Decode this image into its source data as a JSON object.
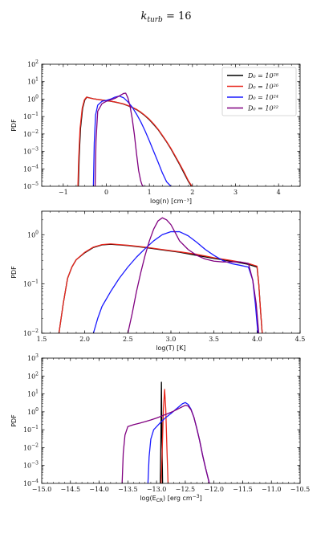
{
  "figure_title": "k_turb = 16",
  "title_parts": {
    "base": "k",
    "sub": "turb",
    "rest": " = 16"
  },
  "chart_data": [
    {
      "type": "line",
      "id": "density",
      "xlabel": "log(n) [cm⁻³]",
      "ylabel": "PDF",
      "xlim": [
        -1.5,
        4.5
      ],
      "ylim": [
        1e-05,
        100
      ],
      "yscale": "log",
      "grid": false,
      "legend": "top-right",
      "xticks": [
        -1,
        0,
        1,
        2,
        3,
        4
      ],
      "xticklabels": [
        "−1",
        "0",
        "1",
        "2",
        "3",
        "4"
      ],
      "yticks": [
        1e-05,
        0.0001,
        0.001,
        0.01,
        0.1,
        1,
        10,
        100
      ],
      "yticklabels": [
        [
          "10",
          "−5"
        ],
        [
          "10",
          "−4"
        ],
        [
          "10",
          "−3"
        ],
        [
          "10",
          "−2"
        ],
        [
          "10",
          "−1"
        ],
        [
          "10",
          "0"
        ],
        [
          "10",
          "1"
        ],
        [
          "10",
          "2"
        ]
      ],
      "series": [
        {
          "name": "D₀ = 10²⁸",
          "color": "#000000",
          "x": [
            -0.65,
            -0.63,
            -0.6,
            -0.55,
            -0.5,
            -0.45,
            -0.4,
            -0.3,
            -0.2,
            -0.1,
            0.0,
            0.1,
            0.2,
            0.3,
            0.4,
            0.5,
            0.6,
            0.7,
            0.8,
            0.9,
            1.0,
            1.1,
            1.2,
            1.3,
            1.4,
            1.5,
            1.6,
            1.7,
            1.8,
            1.9,
            2.0,
            2.1,
            2.17
          ],
          "y": [
            1e-05,
            0.0005,
            0.02,
            0.3,
            0.9,
            1.3,
            1.2,
            1.05,
            0.95,
            0.88,
            0.82,
            0.75,
            0.68,
            0.6,
            0.52,
            0.42,
            0.33,
            0.25,
            0.17,
            0.11,
            0.065,
            0.035,
            0.018,
            0.008,
            0.0035,
            0.0014,
            0.0005,
            0.00018,
            6e-05,
            2e-05,
            8e-06,
            2.5e-06,
            1e-05
          ]
        },
        {
          "name": "D₀ = 10²⁶",
          "color": "#e8261c",
          "x": [
            -0.66,
            -0.64,
            -0.61,
            -0.56,
            -0.51,
            -0.46,
            -0.41,
            -0.3,
            -0.2,
            -0.1,
            0.0,
            0.1,
            0.2,
            0.3,
            0.4,
            0.5,
            0.6,
            0.7,
            0.8,
            0.9,
            1.0,
            1.1,
            1.2,
            1.3,
            1.4,
            1.5,
            1.6,
            1.7,
            1.8,
            1.9,
            2.0,
            2.1,
            2.18
          ],
          "y": [
            1e-05,
            0.0005,
            0.02,
            0.3,
            0.9,
            1.3,
            1.2,
            1.05,
            0.96,
            0.89,
            0.83,
            0.76,
            0.69,
            0.61,
            0.53,
            0.43,
            0.34,
            0.26,
            0.18,
            0.115,
            0.07,
            0.038,
            0.019,
            0.0085,
            0.0037,
            0.0015,
            0.00055,
            0.0002,
            7e-05,
            2.2e-05,
            9e-06,
            3e-06,
            1e-05
          ]
        },
        {
          "name": "D₀ = 10²⁴",
          "color": "#1a1aff",
          "x": [
            -0.3,
            -0.28,
            -0.25,
            -0.2,
            -0.1,
            0.0,
            0.1,
            0.2,
            0.3,
            0.4,
            0.5,
            0.6,
            0.7,
            0.8,
            0.9,
            1.0,
            1.1,
            1.2,
            1.3,
            1.4,
            1.5
          ],
          "y": [
            1e-05,
            0.003,
            0.12,
            0.45,
            0.75,
            0.85,
            1.0,
            1.3,
            1.5,
            1.2,
            0.7,
            0.35,
            0.14,
            0.05,
            0.015,
            0.004,
            0.001,
            0.00025,
            6e-05,
            1.8e-05,
            1e-05
          ]
        },
        {
          "name": "D₀ = 10²²",
          "color": "#800080",
          "x": [
            -0.26,
            -0.24,
            -0.2,
            -0.1,
            0.0,
            0.1,
            0.2,
            0.3,
            0.4,
            0.45,
            0.5,
            0.55,
            0.6,
            0.65,
            0.7,
            0.75,
            0.8,
            0.83,
            0.86
          ],
          "y": [
            1e-05,
            0.004,
            0.2,
            0.55,
            0.75,
            0.9,
            1.1,
            1.5,
            2.1,
            2.2,
            1.2,
            0.4,
            0.08,
            0.01,
            0.0008,
            8e-05,
            2e-05,
            1.2e-05,
            1e-05
          ]
        }
      ]
    },
    {
      "type": "line",
      "id": "temperature",
      "xlabel": "log(T) [K]",
      "ylabel": "PDF",
      "xlim": [
        1.5,
        4.5
      ],
      "ylim": [
        0.01,
        3
      ],
      "yscale": "log",
      "grid": false,
      "legend": "none",
      "xticks": [
        1.5,
        2.0,
        2.5,
        3.0,
        3.5,
        4.0,
        4.5
      ],
      "xticklabels": [
        "1.5",
        "2.0",
        "2.5",
        "3.0",
        "3.5",
        "4.0",
        "4.5"
      ],
      "yticks": [
        0.01,
        0.1,
        1
      ],
      "yticklabels": [
        [
          "10",
          "−2"
        ],
        [
          "10",
          "−1"
        ],
        [
          "10",
          "0"
        ]
      ],
      "series": [
        {
          "name": "D₀ = 10²⁸",
          "color": "#000000",
          "x": [
            1.7,
            1.75,
            1.8,
            1.85,
            1.9,
            2.0,
            2.1,
            2.2,
            2.3,
            2.4,
            2.5,
            2.7,
            2.9,
            3.1,
            3.3,
            3.5,
            3.7,
            3.9,
            4.0,
            4.02,
            4.04,
            4.06
          ],
          "y": [
            0.01,
            0.04,
            0.13,
            0.22,
            0.31,
            0.43,
            0.55,
            0.62,
            0.64,
            0.62,
            0.6,
            0.55,
            0.49,
            0.44,
            0.38,
            0.33,
            0.29,
            0.25,
            0.22,
            0.1,
            0.03,
            0.01
          ]
        },
        {
          "name": "D₀ = 10²⁶",
          "color": "#e8261c",
          "x": [
            1.7,
            1.75,
            1.8,
            1.85,
            1.9,
            2.0,
            2.1,
            2.2,
            2.3,
            2.4,
            2.5,
            2.7,
            2.9,
            3.1,
            3.3,
            3.5,
            3.7,
            3.9,
            4.0,
            4.02,
            4.04,
            4.06
          ],
          "y": [
            0.01,
            0.04,
            0.13,
            0.22,
            0.31,
            0.44,
            0.56,
            0.63,
            0.65,
            0.63,
            0.61,
            0.56,
            0.5,
            0.45,
            0.4,
            0.34,
            0.3,
            0.26,
            0.23,
            0.1,
            0.03,
            0.01
          ]
        },
        {
          "name": "D₀ = 10²⁴",
          "color": "#1a1aff",
          "x": [
            2.1,
            2.15,
            2.2,
            2.3,
            2.4,
            2.5,
            2.6,
            2.7,
            2.8,
            2.9,
            3.0,
            3.1,
            3.2,
            3.3,
            3.4,
            3.5,
            3.6,
            3.7,
            3.8,
            3.9,
            3.95,
            3.98,
            4.01
          ],
          "y": [
            0.01,
            0.02,
            0.035,
            0.07,
            0.13,
            0.22,
            0.35,
            0.52,
            0.75,
            1.0,
            1.15,
            1.15,
            0.95,
            0.7,
            0.5,
            0.38,
            0.3,
            0.26,
            0.24,
            0.22,
            0.12,
            0.04,
            0.01
          ]
        },
        {
          "name": "D₀ = 10²²",
          "color": "#800080",
          "x": [
            2.5,
            2.55,
            2.6,
            2.65,
            2.7,
            2.75,
            2.8,
            2.85,
            2.9,
            2.95,
            3.0,
            3.05,
            3.1,
            3.2,
            3.3,
            3.4,
            3.5,
            3.6,
            3.7,
            3.8,
            3.9,
            3.95,
            3.99,
            4.02
          ],
          "y": [
            0.01,
            0.025,
            0.07,
            0.17,
            0.38,
            0.75,
            1.3,
            1.9,
            2.2,
            2.0,
            1.6,
            1.1,
            0.75,
            0.5,
            0.38,
            0.32,
            0.29,
            0.28,
            0.28,
            0.28,
            0.26,
            0.12,
            0.04,
            0.01
          ]
        }
      ]
    },
    {
      "type": "line",
      "id": "cosmic_ray_energy",
      "xlabel": "log(E_CR) [erg cm⁻³]",
      "xlabel_parts": {
        "before": "log(E",
        "sub": "CR",
        "after": ") [erg cm",
        "sup": "−3",
        "end": "]"
      },
      "ylabel": "PDF",
      "xlim": [
        -15.0,
        -10.5
      ],
      "ylim": [
        0.0001,
        1000
      ],
      "yscale": "log",
      "grid": false,
      "legend": "none",
      "xticks": [
        -15.0,
        -14.5,
        -14.0,
        -13.5,
        -13.0,
        -12.5,
        -12.0,
        -11.5,
        -11.0,
        -10.5
      ],
      "xticklabels": [
        "−15.0",
        "−14.5",
        "−14.0",
        "−13.5",
        "−13.0",
        "−12.5",
        "−12.0",
        "−11.5",
        "−11.0",
        "−10.5"
      ],
      "yticks": [
        0.0001,
        0.001,
        0.01,
        0.1,
        1,
        10,
        100,
        1000
      ],
      "yticklabels": [
        [
          "10",
          "−4"
        ],
        [
          "10",
          "−3"
        ],
        [
          "10",
          "−2"
        ],
        [
          "10",
          "−1"
        ],
        [
          "10",
          "0"
        ],
        [
          "10",
          "1"
        ],
        [
          "10",
          "2"
        ],
        [
          "10",
          "3"
        ]
      ],
      "series": [
        {
          "name": "D₀ = 10²⁸",
          "color": "#000000",
          "x": [
            -12.935,
            -12.925,
            -12.915,
            -12.905,
            -12.895
          ],
          "y": [
            0.0001,
            0.02,
            45,
            0.02,
            0.0001
          ]
        },
        {
          "name": "D₀ = 10²⁶",
          "color": "#e8261c",
          "x": [
            -12.92,
            -12.9,
            -12.88,
            -12.86,
            -12.84,
            -12.82,
            -12.8
          ],
          "y": [
            0.0001,
            0.01,
            1.5,
            18,
            1.5,
            0.01,
            0.0001
          ]
        },
        {
          "name": "D₀ = 10²⁴",
          "color": "#1a1aff",
          "x": [
            -13.15,
            -13.13,
            -13.1,
            -13.05,
            -12.95,
            -12.85,
            -12.75,
            -12.65,
            -12.55,
            -12.5,
            -12.45,
            -12.4,
            -12.35,
            -12.3,
            -12.25,
            -12.2,
            -12.15,
            -12.1,
            -12.08
          ],
          "y": [
            0.0001,
            0.003,
            0.03,
            0.1,
            0.22,
            0.45,
            0.8,
            1.5,
            2.8,
            3.3,
            2.6,
            1.4,
            0.5,
            0.12,
            0.025,
            0.004,
            0.0008,
            0.00018,
            0.0001
          ]
        },
        {
          "name": "D₀ = 10²²",
          "color": "#800080",
          "x": [
            -13.6,
            -13.58,
            -13.55,
            -13.5,
            -13.4,
            -13.3,
            -13.2,
            -13.1,
            -13.0,
            -12.9,
            -12.8,
            -12.7,
            -12.6,
            -12.5,
            -12.45,
            -12.4,
            -12.35,
            -12.3,
            -12.25,
            -12.2,
            -12.15,
            -12.1,
            -12.08
          ],
          "y": [
            0.0001,
            0.005,
            0.05,
            0.15,
            0.19,
            0.23,
            0.28,
            0.35,
            0.45,
            0.6,
            0.8,
            1.1,
            1.6,
            2.3,
            2.1,
            1.3,
            0.5,
            0.12,
            0.025,
            0.004,
            0.0008,
            0.00018,
            0.0001
          ]
        }
      ]
    }
  ]
}
